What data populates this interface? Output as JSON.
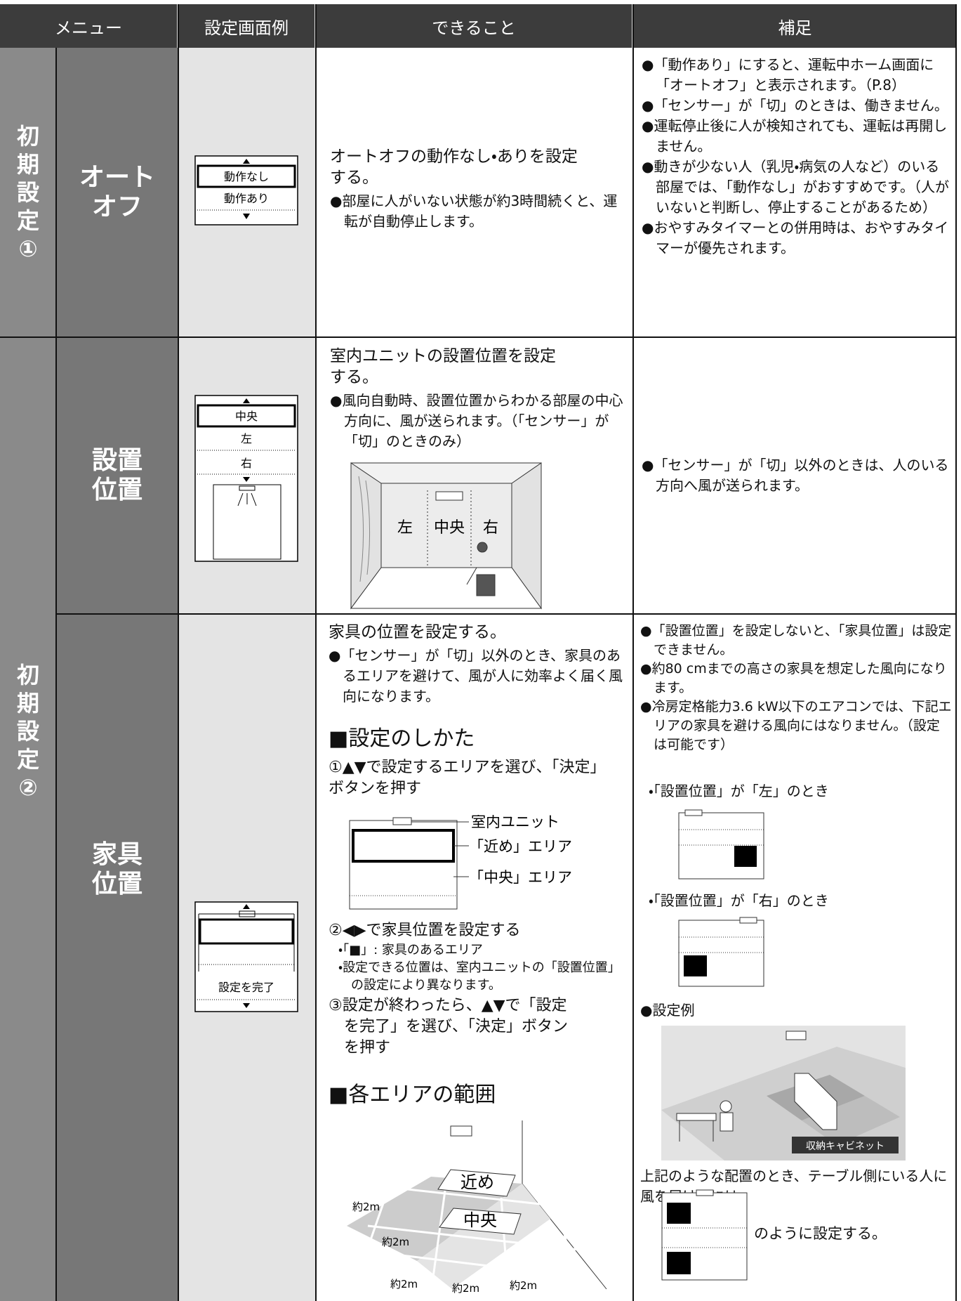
{
  "header": {
    "columns": [
      "メニュー",
      "設定画面例",
      "できること",
      "補足"
    ]
  },
  "groups": [
    {
      "label": "初期設定①"
    },
    {
      "label": "初期設定②"
    }
  ],
  "rows": [
    {
      "menu": "オートオフ",
      "screen": [
        "動作なし",
        "動作あり"
      ],
      "description": {
        "lead": "オートオフの動作なし・ありを設定する。",
        "bullets": [
          "●部屋に人がいない状態が約3時間続くと、運転が自動停止します。"
        ]
      },
      "notes": [
        "●「動作あり」にすると、運転中ホーム画面に「オートオフ」と表示されます。（P.8）",
        "●「センサー」が「切」のときは、働きません。",
        "●運転停止後に人が検知されても、運転は再開しません。",
        "●動きが少ない人（乳児・病気の人など）のいる部屋では、「動作なし」がおすすめです。（人がいないと判断し、停止することがあるため）",
        "●おやすみタイマーとの併用時は、おやすみタイマーが優先されます。"
      ]
    },
    {
      "menu": "設置位置",
      "screen": [
        "中央",
        "左",
        "右"
      ],
      "description": {
        "lead": "室内ユニットの設置位置を設定する。",
        "bullets": [
          "●風向自動時、設置位置からわかる部屋の中心方向に、風が送られます。（「センサー」が「切」のときのみ）"
        ],
        "room_labels": [
          "左",
          "中央",
          "右"
        ]
      },
      "notes": [
        "●「センサー」が「切」以外のときは、人のいる方向へ風が送られます。"
      ]
    },
    {
      "menu": "家具位置",
      "screen": [
        "設定を完了"
      ],
      "description": {
        "lead": "家具の位置を設定する。",
        "bullets": [
          "●「センサー」が「切」以外のとき、家具のあるエリアを避けて、風が人に効率よく届く風向になります。"
        ],
        "how_to": {
          "heading": "■設定のしかた",
          "step1": "①▲▼で設定するエリアを選び、「決定」ボタンを押す",
          "diagram_labels": [
            "室内ユニット",
            "「近め」エリア",
            "「中央」エリア"
          ],
          "step2": "②◀▶で家具位置を設定する",
          "step2_notes": [
            "・「■」: 家具のあるエリア",
            "・設定できる位置は、室内ユニットの「設置位置」の設定により異なります。"
          ],
          "step3": "③設定が終わったら、▲▼で「設定を完了」を選び、「決定」ボタンを押す"
        },
        "areas": {
          "heading": "■各エリアの範囲",
          "labels": [
            "近め",
            "中央"
          ],
          "distances": [
            "約2m",
            "約2m",
            "約2m",
            "約2m",
            "約2m"
          ]
        }
      },
      "notes": {
        "bullets": [
          "●「設置位置」を設定しないと、「家具位置」は設定できません。",
          "●約80 cmまでの高さの家具を想定した風向になります。",
          "●冷房定格能力3.6 kW以下のエアコンでは、下記エリアの家具を避ける風向にはなりません。（設定は可能です）"
        ],
        "left_case": "・「設置位置」が「左」のとき",
        "right_case": "・「設置位置」が「右」のとき",
        "example": "●設定例",
        "example_label": "収納キャビネット",
        "example_text": "上記のような配置のとき、テーブル側にいる人に風を届けるには",
        "example_result": "のように設定する。"
      }
    }
  ]
}
